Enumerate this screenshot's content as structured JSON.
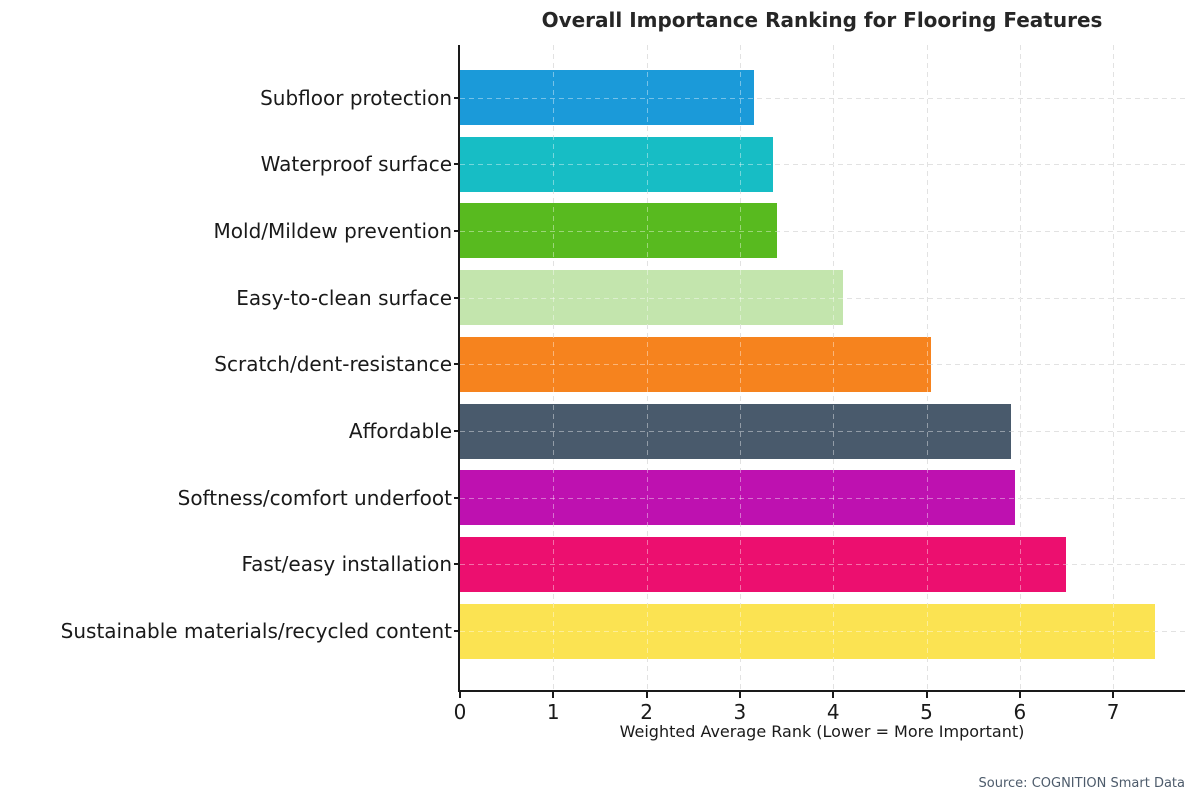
{
  "chart_data": {
    "type": "bar",
    "orientation": "horizontal",
    "title": "Overall Importance Ranking for Flooring Features",
    "xlabel": "Weighted Average Rank (Lower = More Important)",
    "ylabel": "",
    "categories": [
      "Subfloor protection",
      "Waterproof surface",
      "Mold/Mildew prevention",
      "Easy-to-clean surface",
      "Scratch/dent-resistance",
      "Affordable",
      "Softness/comfort underfoot",
      "Fast/easy installation",
      "Sustainable materials/recycled content"
    ],
    "values": [
      3.15,
      3.35,
      3.4,
      4.1,
      5.05,
      5.9,
      5.95,
      6.5,
      7.45
    ],
    "bar_colors": [
      "#1b9ad9",
      "#17bdc5",
      "#58ba1f",
      "#c3e5ad",
      "#f6831e",
      "#495a6c",
      "#be11b0",
      "#ec0f6f",
      "#fbe352"
    ],
    "xticks": [
      0,
      1,
      2,
      3,
      4,
      5,
      6,
      7
    ],
    "xlim": [
      0,
      7.77
    ],
    "grid": true,
    "grid_style": "dashed",
    "legend": "none"
  },
  "source": {
    "label": "Source: COGNITION Smart Data"
  },
  "colors": {
    "background": "#ffffff",
    "axis": "#1a1a1a",
    "text": "#1a1a1a",
    "grid": "#cfcfcf",
    "source_text": "#4d5b6b"
  }
}
